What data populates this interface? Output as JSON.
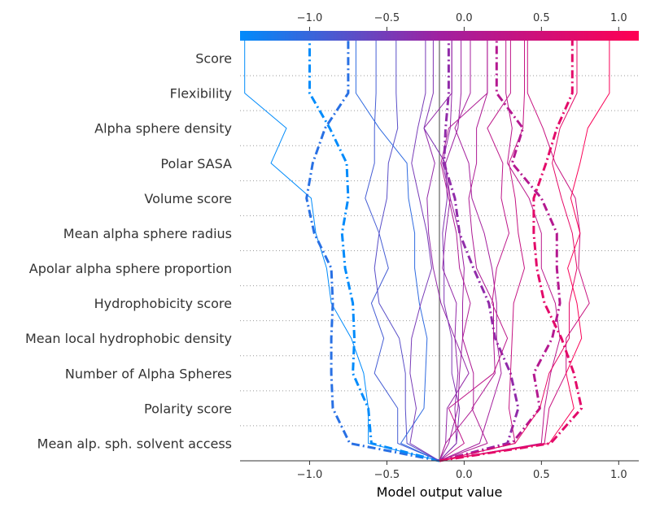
{
  "chart_data": {
    "type": "line",
    "subtype": "shap-decision-plot",
    "xlabel": "Model output value",
    "xlim": [
      -1.45,
      1.13
    ],
    "x_ticks": [
      -1.0,
      -0.5,
      0.0,
      0.5,
      1.0
    ],
    "x_tick_labels": [
      "−1.0",
      "−0.5",
      "0.0",
      "0.5",
      "1.0"
    ],
    "base_value": -0.16,
    "features": [
      "Mean alp. sph. solvent access",
      "Polarity score",
      "Number of Alpha Spheres",
      "Mean local hydrophobic density",
      "Hydrophobicity score",
      "Apolar alpha sphere proportion",
      "Mean alpha sphere radius",
      "Volume score",
      "Polar SASA",
      "Alpha sphere density",
      "Flexibility",
      "Score"
    ],
    "colorbar": {
      "low_color": "#008bfb",
      "mid_color": "#a020a0",
      "high_color": "#ff0052",
      "min": -1.0,
      "max": 1.0
    },
    "grid": "dotted horizontal",
    "series": [
      {
        "values": [
          -0.16,
          -0.62,
          -0.62,
          -0.65,
          -0.73,
          -0.86,
          -0.89,
          -0.96,
          -0.99,
          -1.25,
          -1.15,
          -1.42
        ],
        "style": "solid"
      },
      {
        "values": [
          -0.16,
          -0.74,
          -0.85,
          -0.86,
          -0.86,
          -0.85,
          -0.86,
          -0.97,
          -1.02,
          -0.98,
          -0.9,
          -0.75
        ],
        "style": "dashdot"
      },
      {
        "values": [
          -0.16,
          -0.6,
          -0.62,
          -0.72,
          -0.71,
          -0.72,
          -0.77,
          -0.79,
          -0.75,
          -0.76,
          -0.87,
          -1.0
        ],
        "style": "dashdot"
      },
      {
        "values": [
          -0.16,
          -0.43,
          -0.43,
          -0.58,
          -0.52,
          -0.6,
          -0.49,
          -0.55,
          -0.64,
          -0.58,
          -0.58,
          -0.57
        ],
        "style": "solid"
      },
      {
        "values": [
          -0.16,
          -0.37,
          -0.38,
          -0.38,
          -0.42,
          -0.55,
          -0.58,
          -0.55,
          -0.5,
          -0.49,
          -0.43,
          -0.44
        ],
        "style": "solid"
      },
      {
        "values": [
          -0.16,
          -0.41,
          -0.26,
          -0.25,
          -0.24,
          -0.29,
          -0.32,
          -0.32,
          -0.36,
          -0.37,
          -0.55,
          -0.7
        ],
        "style": "solid"
      },
      {
        "values": [
          -0.16,
          -0.35,
          -0.31,
          -0.35,
          -0.34,
          -0.28,
          -0.21,
          -0.24,
          -0.29,
          -0.34,
          -0.3,
          -0.25
        ],
        "style": "solid"
      },
      {
        "values": [
          -0.16,
          -0.05,
          -0.06,
          -0.04,
          -0.06,
          -0.15,
          -0.2,
          -0.23,
          -0.24,
          -0.19,
          -0.26,
          -0.08
        ],
        "style": "solid"
      },
      {
        "values": [
          -0.16,
          -0.05,
          -0.03,
          -0.08,
          -0.08,
          -0.13,
          -0.13,
          -0.14,
          -0.11,
          -0.12,
          -0.26,
          -0.2
        ],
        "style": "solid"
      },
      {
        "values": [
          -0.16,
          -0.12,
          -0.11,
          0.03,
          -0.06,
          -0.05,
          -0.14,
          -0.12,
          -0.09,
          -0.14,
          -0.09,
          -0.08
        ],
        "style": "solid"
      },
      {
        "values": [
          -0.16,
          -0.1,
          -0.04,
          -0.03,
          -0.01,
          -0.01,
          0.0,
          -0.03,
          -0.09,
          -0.12,
          -0.04,
          -0.02
        ],
        "style": "solid"
      },
      {
        "values": [
          -0.16,
          -0.12,
          0.06,
          0.06,
          -0.01,
          0.04,
          -0.03,
          -0.05,
          -0.1,
          -0.15,
          -0.1,
          0.15
        ],
        "style": "solid"
      },
      {
        "values": [
          -0.16,
          0.28,
          0.35,
          0.3,
          0.2,
          0.16,
          0.06,
          -0.03,
          -0.06,
          -0.13,
          -0.12,
          -0.1
        ],
        "style": "dashdot"
      },
      {
        "values": [
          -0.16,
          0.1,
          0.17,
          0.24,
          0.21,
          0.21,
          0.18,
          0.13,
          0.05,
          0.03,
          -0.06,
          0.04
        ],
        "style": "solid"
      },
      {
        "values": [
          -0.16,
          0.15,
          0.05,
          0.2,
          0.19,
          0.19,
          0.08,
          0.05,
          0.03,
          0.08,
          0.08,
          0.15
        ],
        "style": "solid"
      },
      {
        "values": [
          -0.16,
          0.0,
          -0.1,
          0.19,
          0.28,
          0.18,
          0.21,
          0.29,
          0.24,
          0.25,
          0.15,
          0.3
        ],
        "style": "solid"
      },
      {
        "values": [
          -0.16,
          0.33,
          0.29,
          0.3,
          0.31,
          0.32,
          0.39,
          0.35,
          0.33,
          0.29,
          0.38,
          0.39
        ],
        "style": "solid"
      },
      {
        "values": [
          -0.16,
          0.5,
          0.52,
          0.56,
          0.62,
          0.59,
          0.5,
          0.5,
          0.42,
          0.28,
          0.31,
          0.27
        ],
        "style": "solid"
      },
      {
        "values": [
          -0.16,
          0.31,
          0.49,
          0.45,
          0.57,
          0.62,
          0.6,
          0.6,
          0.5,
          0.31,
          0.38,
          0.21
        ],
        "style": "dashdot"
      },
      {
        "values": [
          -0.16,
          0.52,
          0.55,
          0.66,
          0.66,
          0.81,
          0.74,
          0.75,
          0.72,
          0.59,
          0.51,
          0.41
        ],
        "style": "solid"
      },
      {
        "values": [
          -0.16,
          0.33,
          0.49,
          0.55,
          0.68,
          0.68,
          0.73,
          0.7,
          0.63,
          0.57,
          0.62,
          0.73
        ],
        "style": "solid"
      },
      {
        "values": [
          -0.16,
          0.55,
          0.71,
          0.66,
          0.76,
          0.73,
          0.67,
          0.75,
          0.69,
          0.75,
          0.8,
          0.94
        ],
        "style": "solid"
      },
      {
        "values": [
          -0.16,
          0.56,
          0.76,
          0.71,
          0.63,
          0.52,
          0.47,
          0.45,
          0.45,
          0.53,
          0.6,
          0.7
        ],
        "style": "dashdot"
      }
    ]
  }
}
